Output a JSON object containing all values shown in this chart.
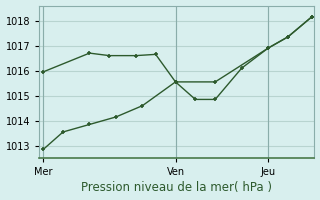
{
  "title": "Pression niveau de la mer( hPa )",
  "bg_color": "#d8efee",
  "grid_color": "#b8d4d0",
  "line_color": "#2d5a2d",
  "ylim": [
    1012.5,
    1018.6
  ],
  "yticks": [
    1013,
    1014,
    1015,
    1016,
    1017,
    1018
  ],
  "xtick_labels": [
    "Mer",
    "Ven",
    "Jeu"
  ],
  "xtick_positions": [
    0,
    10,
    17
  ],
  "xlim": [
    -0.3,
    20.5
  ],
  "vline_positions": [
    0,
    10,
    17
  ],
  "line1_x": [
    0,
    1.5,
    3.5,
    5.5,
    7.5,
    10,
    11.5,
    13,
    15,
    17,
    18.5,
    20.3
  ],
  "line1_y": [
    1012.85,
    1013.55,
    1013.85,
    1014.15,
    1014.6,
    1015.55,
    1014.85,
    1014.85,
    1016.1,
    1016.9,
    1017.35,
    1018.15
  ],
  "line2_x": [
    0,
    3.5,
    5.0,
    7.0,
    8.5,
    10,
    13,
    17,
    18.5,
    20.3
  ],
  "line2_y": [
    1015.95,
    1016.7,
    1016.6,
    1016.6,
    1016.65,
    1015.55,
    1015.55,
    1016.9,
    1017.35,
    1018.15
  ],
  "marker_style": "P",
  "marker_size": 3.5,
  "line_width": 1.0,
  "xlabel_fontsize": 8.5,
  "tick_fontsize": 7
}
